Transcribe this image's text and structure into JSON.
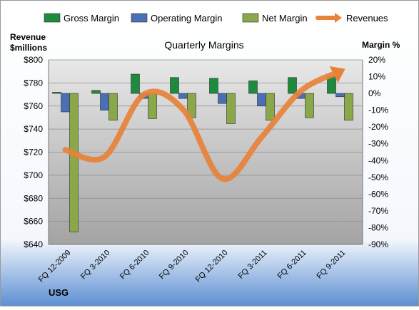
{
  "chart_data": {
    "type": "bar",
    "title": "Quarterly Margins",
    "company": "USG",
    "left_axis_label_lines": [
      "Revenue",
      "$millions"
    ],
    "right_axis_label": "Margin %",
    "categories": [
      "FQ 12-2009",
      "FQ 3-2010",
      "FQ 6-2010",
      "FQ 9-2010",
      "FQ 12-2010",
      "FQ 3-2011",
      "FQ 6-2011",
      "FQ 9-2011"
    ],
    "margin_series": [
      {
        "name": "Gross Margin",
        "color": "#1e8a3e",
        "values": [
          0.7,
          1.8,
          11.5,
          9.5,
          9.0,
          7.5,
          9.5,
          10.0
        ]
      },
      {
        "name": "Operating Margin",
        "color": "#4a6fb5",
        "values": [
          -11.0,
          -10.0,
          -3.0,
          -3.0,
          -6.0,
          -7.5,
          -3.0,
          -2.0
        ]
      },
      {
        "name": "Net Margin",
        "color": "#8aa84a",
        "values": [
          -82.5,
          -16.0,
          -15.0,
          -14.5,
          -18.0,
          -16.0,
          -14.5,
          -16.0
        ]
      }
    ],
    "revenue_series": {
      "name": "Revenues",
      "color": "#e8823a",
      "values": [
        722,
        716,
        770,
        757,
        697,
        733,
        773,
        790
      ]
    },
    "left_axis": {
      "min": 640,
      "max": 800,
      "step": 20,
      "format": "$"
    },
    "right_axis": {
      "min": -90,
      "max": 20,
      "step": 10,
      "format": "%"
    },
    "grid": true,
    "legend_position": "top"
  }
}
